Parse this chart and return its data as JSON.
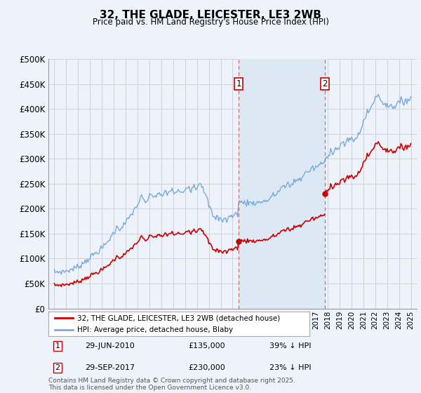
{
  "title": "32, THE GLADE, LEICESTER, LE3 2WB",
  "subtitle": "Price paid vs. HM Land Registry's House Price Index (HPI)",
  "legend_line1": "32, THE GLADE, LEICESTER, LE3 2WB (detached house)",
  "legend_line2": "HPI: Average price, detached house, Blaby",
  "marker1_date": "29-JUN-2010",
  "marker1_price": 135000,
  "marker1_text": "39% ↓ HPI",
  "marker2_date": "29-SEP-2017",
  "marker2_price": 230000,
  "marker2_text": "23% ↓ HPI",
  "purchase1_year": 2010.5,
  "purchase2_year": 2017.75,
  "ylim": [
    0,
    500000
  ],
  "xlim": [
    1994.5,
    2025.5
  ],
  "background_color": "#eef2fb",
  "red_color": "#cc0000",
  "blue_color": "#7aaadd",
  "span_color": "#dde8f5",
  "footer": "Contains HM Land Registry data © Crown copyright and database right 2025.\nThis data is licensed under the Open Government Licence v3.0.",
  "hpi_data": [
    [
      1995.0,
      73000
    ],
    [
      1995.083,
      73200
    ],
    [
      1995.167,
      73100
    ],
    [
      1995.25,
      73400
    ],
    [
      1995.333,
      73600
    ],
    [
      1995.417,
      73500
    ],
    [
      1995.5,
      73800
    ],
    [
      1995.583,
      74000
    ],
    [
      1995.667,
      74200
    ],
    [
      1995.75,
      74500
    ],
    [
      1995.833,
      74700
    ],
    [
      1995.917,
      75000
    ],
    [
      1996.0,
      75500
    ],
    [
      1996.083,
      76000
    ],
    [
      1996.167,
      76500
    ],
    [
      1996.25,
      77200
    ],
    [
      1996.333,
      77800
    ],
    [
      1996.417,
      78500
    ],
    [
      1996.5,
      79200
    ],
    [
      1996.583,
      80000
    ],
    [
      1996.667,
      80800
    ],
    [
      1996.75,
      81500
    ],
    [
      1996.833,
      82500
    ],
    [
      1996.917,
      83500
    ],
    [
      1997.0,
      84500
    ],
    [
      1997.083,
      86000
    ],
    [
      1997.167,
      87500
    ],
    [
      1997.25,
      89000
    ],
    [
      1997.333,
      90500
    ],
    [
      1997.417,
      92000
    ],
    [
      1997.5,
      93500
    ],
    [
      1997.583,
      95000
    ],
    [
      1997.667,
      96800
    ],
    [
      1997.75,
      98500
    ],
    [
      1997.833,
      100000
    ],
    [
      1997.917,
      101500
    ],
    [
      1998.0,
      103000
    ],
    [
      1998.083,
      104500
    ],
    [
      1998.167,
      106000
    ],
    [
      1998.25,
      107500
    ],
    [
      1998.333,
      109000
    ],
    [
      1998.417,
      110500
    ],
    [
      1998.5,
      112000
    ],
    [
      1998.583,
      113500
    ],
    [
      1998.667,
      115000
    ],
    [
      1998.75,
      116500
    ],
    [
      1998.833,
      118000
    ],
    [
      1998.917,
      119500
    ],
    [
      1999.0,
      121000
    ],
    [
      1999.083,
      123000
    ],
    [
      1999.167,
      125000
    ],
    [
      1999.25,
      127500
    ],
    [
      1999.333,
      130000
    ],
    [
      1999.417,
      132500
    ],
    [
      1999.5,
      135000
    ],
    [
      1999.583,
      138000
    ],
    [
      1999.667,
      141000
    ],
    [
      1999.75,
      144000
    ],
    [
      1999.833,
      147000
    ],
    [
      1999.917,
      150000
    ],
    [
      2000.0,
      153000
    ],
    [
      2000.083,
      156000
    ],
    [
      2000.167,
      159000
    ],
    [
      2000.25,
      162000
    ],
    [
      2000.333,
      165000
    ],
    [
      2000.417,
      163000
    ],
    [
      2000.5,
      161000
    ],
    [
      2000.583,
      163000
    ],
    [
      2000.667,
      165000
    ],
    [
      2000.75,
      167000
    ],
    [
      2000.833,
      169000
    ],
    [
      2000.917,
      171000
    ],
    [
      2001.0,
      173000
    ],
    [
      2001.083,
      176000
    ],
    [
      2001.167,
      179000
    ],
    [
      2001.25,
      182000
    ],
    [
      2001.333,
      185000
    ],
    [
      2001.417,
      188000
    ],
    [
      2001.5,
      191000
    ],
    [
      2001.583,
      194000
    ],
    [
      2001.667,
      197000
    ],
    [
      2001.75,
      200000
    ],
    [
      2001.833,
      203000
    ],
    [
      2001.917,
      206000
    ],
    [
      2002.0,
      209000
    ],
    [
      2002.083,
      213000
    ],
    [
      2002.167,
      217000
    ],
    [
      2002.25,
      221000
    ],
    [
      2002.333,
      225000
    ],
    [
      2002.417,
      222000
    ],
    [
      2002.5,
      219000
    ],
    [
      2002.583,
      216000
    ],
    [
      2002.667,
      213000
    ],
    [
      2002.75,
      216000
    ],
    [
      2002.833,
      219000
    ],
    [
      2002.917,
      222000
    ],
    [
      2003.0,
      225000
    ],
    [
      2003.083,
      228000
    ],
    [
      2003.167,
      231000
    ],
    [
      2003.25,
      229000
    ],
    [
      2003.333,
      227000
    ],
    [
      2003.417,
      225000
    ],
    [
      2003.5,
      227000
    ],
    [
      2003.583,
      229000
    ],
    [
      2003.667,
      231000
    ],
    [
      2003.75,
      233000
    ],
    [
      2003.833,
      230000
    ],
    [
      2003.917,
      228000
    ],
    [
      2004.0,
      226000
    ],
    [
      2004.083,
      228000
    ],
    [
      2004.167,
      230000
    ],
    [
      2004.25,
      233000
    ],
    [
      2004.333,
      236000
    ],
    [
      2004.417,
      234000
    ],
    [
      2004.5,
      232000
    ],
    [
      2004.583,
      234000
    ],
    [
      2004.667,
      236000
    ],
    [
      2004.75,
      238000
    ],
    [
      2004.833,
      240000
    ],
    [
      2004.917,
      238000
    ],
    [
      2005.0,
      236000
    ],
    [
      2005.083,
      234000
    ],
    [
      2005.167,
      232000
    ],
    [
      2005.25,
      234000
    ],
    [
      2005.333,
      236000
    ],
    [
      2005.417,
      238000
    ],
    [
      2005.5,
      236000
    ],
    [
      2005.583,
      234000
    ],
    [
      2005.667,
      232000
    ],
    [
      2005.75,
      234000
    ],
    [
      2005.833,
      236000
    ],
    [
      2005.917,
      238000
    ],
    [
      2006.0,
      240000
    ],
    [
      2006.083,
      243000
    ],
    [
      2006.167,
      246000
    ],
    [
      2006.25,
      249000
    ],
    [
      2006.333,
      246000
    ],
    [
      2006.417,
      243000
    ],
    [
      2006.5,
      240000
    ],
    [
      2006.583,
      243000
    ],
    [
      2006.667,
      246000
    ],
    [
      2006.75,
      249000
    ],
    [
      2006.833,
      246000
    ],
    [
      2006.917,
      243000
    ],
    [
      2007.0,
      246000
    ],
    [
      2007.083,
      249000
    ],
    [
      2007.167,
      252000
    ],
    [
      2007.25,
      255000
    ],
    [
      2007.333,
      252000
    ],
    [
      2007.417,
      249000
    ],
    [
      2007.5,
      246000
    ],
    [
      2007.583,
      240000
    ],
    [
      2007.667,
      234000
    ],
    [
      2007.75,
      228000
    ],
    [
      2007.833,
      222000
    ],
    [
      2007.917,
      216000
    ],
    [
      2008.0,
      210000
    ],
    [
      2008.083,
      205000
    ],
    [
      2008.167,
      200000
    ],
    [
      2008.25,
      195000
    ],
    [
      2008.333,
      190000
    ],
    [
      2008.417,
      185000
    ],
    [
      2008.5,
      181000
    ],
    [
      2008.583,
      185000
    ],
    [
      2008.667,
      188000
    ],
    [
      2008.75,
      184000
    ],
    [
      2008.833,
      180000
    ],
    [
      2008.917,
      183000
    ],
    [
      2009.0,
      186000
    ],
    [
      2009.083,
      182000
    ],
    [
      2009.167,
      178000
    ],
    [
      2009.25,
      181000
    ],
    [
      2009.333,
      184000
    ],
    [
      2009.417,
      181000
    ],
    [
      2009.5,
      178000
    ],
    [
      2009.583,
      181000
    ],
    [
      2009.667,
      184000
    ],
    [
      2009.75,
      187000
    ],
    [
      2009.833,
      190000
    ],
    [
      2009.917,
      188000
    ],
    [
      2010.0,
      186000
    ],
    [
      2010.083,
      188000
    ],
    [
      2010.167,
      190000
    ],
    [
      2010.25,
      192000
    ],
    [
      2010.333,
      194000
    ],
    [
      2010.417,
      192000
    ],
    [
      2010.5,
      218000
    ],
    [
      2010.583,
      217000
    ],
    [
      2010.667,
      216000
    ],
    [
      2010.75,
      215000
    ],
    [
      2010.833,
      214000
    ],
    [
      2010.917,
      215000
    ],
    [
      2011.0,
      216000
    ],
    [
      2011.083,
      215000
    ],
    [
      2011.167,
      214000
    ],
    [
      2011.25,
      215000
    ],
    [
      2011.333,
      216000
    ],
    [
      2011.417,
      215000
    ],
    [
      2011.5,
      214000
    ],
    [
      2011.583,
      215000
    ],
    [
      2011.667,
      216000
    ],
    [
      2011.75,
      215000
    ],
    [
      2011.833,
      214000
    ],
    [
      2011.917,
      215000
    ],
    [
      2012.0,
      216000
    ],
    [
      2012.083,
      215000
    ],
    [
      2012.167,
      214000
    ],
    [
      2012.25,
      215000
    ],
    [
      2012.333,
      216000
    ],
    [
      2012.417,
      217000
    ],
    [
      2012.5,
      218000
    ],
    [
      2012.583,
      219000
    ],
    [
      2012.667,
      218000
    ],
    [
      2012.75,
      217000
    ],
    [
      2012.833,
      218000
    ],
    [
      2012.917,
      219000
    ],
    [
      2013.0,
      220000
    ],
    [
      2013.083,
      222000
    ],
    [
      2013.167,
      224000
    ],
    [
      2013.25,
      226000
    ],
    [
      2013.333,
      228000
    ],
    [
      2013.417,
      230000
    ],
    [
      2013.5,
      228000
    ],
    [
      2013.583,
      230000
    ],
    [
      2013.667,
      232000
    ],
    [
      2013.75,
      234000
    ],
    [
      2013.833,
      236000
    ],
    [
      2013.917,
      238000
    ],
    [
      2014.0,
      240000
    ],
    [
      2014.083,
      243000
    ],
    [
      2014.167,
      246000
    ],
    [
      2014.25,
      249000
    ],
    [
      2014.333,
      246000
    ],
    [
      2014.417,
      243000
    ],
    [
      2014.5,
      246000
    ],
    [
      2014.583,
      249000
    ],
    [
      2014.667,
      252000
    ],
    [
      2014.75,
      249000
    ],
    [
      2014.833,
      246000
    ],
    [
      2014.917,
      249000
    ],
    [
      2015.0,
      252000
    ],
    [
      2015.083,
      255000
    ],
    [
      2015.167,
      258000
    ],
    [
      2015.25,
      255000
    ],
    [
      2015.333,
      258000
    ],
    [
      2015.417,
      261000
    ],
    [
      2015.5,
      258000
    ],
    [
      2015.583,
      261000
    ],
    [
      2015.667,
      264000
    ],
    [
      2015.75,
      261000
    ],
    [
      2015.833,
      264000
    ],
    [
      2015.917,
      267000
    ],
    [
      2016.0,
      270000
    ],
    [
      2016.083,
      273000
    ],
    [
      2016.167,
      276000
    ],
    [
      2016.25,
      273000
    ],
    [
      2016.333,
      276000
    ],
    [
      2016.417,
      279000
    ],
    [
      2016.5,
      276000
    ],
    [
      2016.583,
      279000
    ],
    [
      2016.667,
      282000
    ],
    [
      2016.75,
      285000
    ],
    [
      2016.833,
      283000
    ],
    [
      2016.917,
      281000
    ],
    [
      2017.0,
      283000
    ],
    [
      2017.083,
      285000
    ],
    [
      2017.167,
      287000
    ],
    [
      2017.25,
      289000
    ],
    [
      2017.333,
      291000
    ],
    [
      2017.417,
      293000
    ],
    [
      2017.5,
      291000
    ],
    [
      2017.583,
      289000
    ],
    [
      2017.667,
      291000
    ],
    [
      2017.75,
      299000
    ],
    [
      2017.833,
      301000
    ],
    [
      2017.917,
      303000
    ],
    [
      2018.0,
      305000
    ],
    [
      2018.083,
      310000
    ],
    [
      2018.167,
      315000
    ],
    [
      2018.25,
      320000
    ],
    [
      2018.333,
      318000
    ],
    [
      2018.417,
      316000
    ],
    [
      2018.5,
      318000
    ],
    [
      2018.583,
      320000
    ],
    [
      2018.667,
      322000
    ],
    [
      2018.75,
      320000
    ],
    [
      2018.833,
      322000
    ],
    [
      2018.917,
      324000
    ],
    [
      2019.0,
      326000
    ],
    [
      2019.083,
      329000
    ],
    [
      2019.167,
      332000
    ],
    [
      2019.25,
      335000
    ],
    [
      2019.333,
      332000
    ],
    [
      2019.417,
      329000
    ],
    [
      2019.5,
      332000
    ],
    [
      2019.583,
      335000
    ],
    [
      2019.667,
      338000
    ],
    [
      2019.75,
      335000
    ],
    [
      2019.833,
      338000
    ],
    [
      2019.917,
      341000
    ],
    [
      2020.0,
      344000
    ],
    [
      2020.083,
      342000
    ],
    [
      2020.167,
      340000
    ],
    [
      2020.25,
      338000
    ],
    [
      2020.333,
      340000
    ],
    [
      2020.417,
      342000
    ],
    [
      2020.5,
      345000
    ],
    [
      2020.583,
      350000
    ],
    [
      2020.667,
      355000
    ],
    [
      2020.75,
      360000
    ],
    [
      2020.833,
      365000
    ],
    [
      2020.917,
      370000
    ],
    [
      2021.0,
      375000
    ],
    [
      2021.083,
      380000
    ],
    [
      2021.167,
      385000
    ],
    [
      2021.25,
      390000
    ],
    [
      2021.333,
      393000
    ],
    [
      2021.417,
      396000
    ],
    [
      2021.5,
      399000
    ],
    [
      2021.583,
      402000
    ],
    [
      2021.667,
      405000
    ],
    [
      2021.75,
      410000
    ],
    [
      2021.833,
      415000
    ],
    [
      2021.917,
      420000
    ],
    [
      2022.0,
      425000
    ],
    [
      2022.083,
      428000
    ],
    [
      2022.167,
      431000
    ],
    [
      2022.25,
      428000
    ],
    [
      2022.333,
      425000
    ],
    [
      2022.417,
      422000
    ],
    [
      2022.5,
      419000
    ],
    [
      2022.583,
      416000
    ],
    [
      2022.667,
      413000
    ],
    [
      2022.75,
      416000
    ],
    [
      2022.833,
      413000
    ],
    [
      2022.917,
      410000
    ],
    [
      2023.0,
      413000
    ],
    [
      2023.083,
      410000
    ],
    [
      2023.167,
      407000
    ],
    [
      2023.25,
      410000
    ],
    [
      2023.333,
      407000
    ],
    [
      2023.417,
      410000
    ],
    [
      2023.5,
      407000
    ],
    [
      2023.583,
      410000
    ],
    [
      2023.667,
      407000
    ],
    [
      2023.75,
      410000
    ],
    [
      2023.833,
      413000
    ],
    [
      2023.917,
      416000
    ],
    [
      2024.0,
      413000
    ],
    [
      2024.083,
      416000
    ],
    [
      2024.167,
      419000
    ],
    [
      2024.25,
      416000
    ],
    [
      2024.333,
      413000
    ],
    [
      2024.417,
      416000
    ],
    [
      2024.5,
      419000
    ],
    [
      2024.583,
      422000
    ],
    [
      2024.667,
      419000
    ],
    [
      2024.75,
      422000
    ],
    [
      2024.833,
      419000
    ],
    [
      2024.917,
      422000
    ],
    [
      2025.0,
      425000
    ]
  ]
}
